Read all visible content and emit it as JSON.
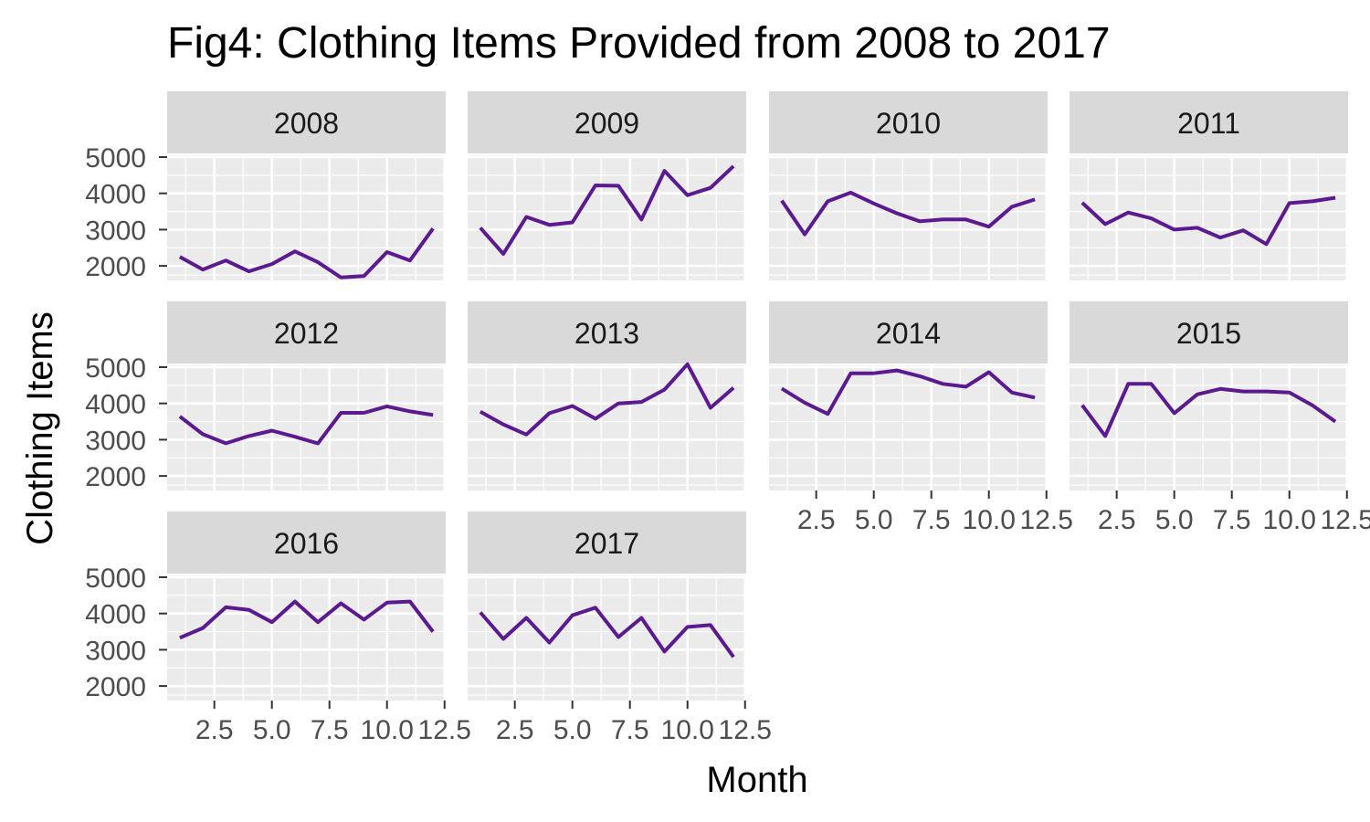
{
  "chart_data": {
    "type": "line",
    "title": "Fig4: Clothing Items Provided from 2008 to 2017",
    "xlabel": "Month",
    "ylabel": "Clothing Items",
    "x_ticks": [
      "2.5",
      "5.0",
      "7.5",
      "10.0",
      "12.5"
    ],
    "y_ticks": [
      "2000",
      "3000",
      "4000",
      "5000"
    ],
    "xlim": [
      0.45,
      12.55
    ],
    "ylim": [
      1600,
      5050
    ],
    "grid": true,
    "line_color": "#5B1A8F",
    "panel_background": "#EBEBEB",
    "strip_background": "#D9D9D9",
    "x": [
      1,
      2,
      3,
      4,
      5,
      6,
      7,
      8,
      9,
      10,
      11,
      12
    ],
    "series": [
      {
        "name": "2008",
        "values": [
          2250,
          1900,
          2150,
          1850,
          2050,
          2400,
          2100,
          1680,
          1720,
          2380,
          2150,
          3030
        ]
      },
      {
        "name": "2009",
        "values": [
          3050,
          2330,
          3350,
          3130,
          3200,
          4220,
          4210,
          3280,
          4620,
          3950,
          4150,
          4750
        ]
      },
      {
        "name": "2010",
        "values": [
          3800,
          2870,
          3780,
          4020,
          3720,
          3450,
          3230,
          3280,
          3280,
          3080,
          3630,
          3830
        ]
      },
      {
        "name": "2011",
        "values": [
          3740,
          3150,
          3470,
          3310,
          3000,
          3050,
          2780,
          2980,
          2600,
          3730,
          3780,
          3880
        ]
      },
      {
        "name": "2012",
        "values": [
          3640,
          3150,
          2900,
          3100,
          3250,
          3080,
          2900,
          3740,
          3740,
          3920,
          3780,
          3680
        ]
      },
      {
        "name": "2013",
        "values": [
          3770,
          3420,
          3140,
          3730,
          3930,
          3580,
          4000,
          4040,
          4380,
          5080,
          3880,
          4430
        ]
      },
      {
        "name": "2014",
        "values": [
          4410,
          4020,
          3710,
          4830,
          4830,
          4910,
          4750,
          4540,
          4460,
          4860,
          4300,
          4160
        ]
      },
      {
        "name": "2015",
        "values": [
          3950,
          3100,
          4540,
          4540,
          3730,
          4250,
          4400,
          4330,
          4330,
          4300,
          3950,
          3500
        ]
      },
      {
        "name": "2016",
        "values": [
          3330,
          3600,
          4170,
          4100,
          3760,
          4330,
          3760,
          4280,
          3830,
          4300,
          4330,
          3500
        ]
      },
      {
        "name": "2017",
        "values": [
          4030,
          3300,
          3880,
          3200,
          3950,
          4160,
          3350,
          3880,
          2950,
          3630,
          3680,
          2800
        ]
      }
    ]
  }
}
